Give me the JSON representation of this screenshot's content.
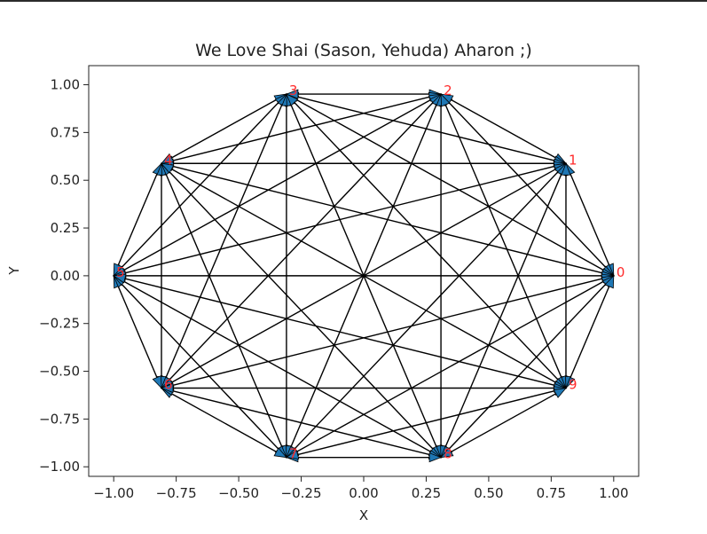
{
  "chart_data": {
    "type": "graph",
    "title": "We Love Shai (Sason, Yehuda) Aharon ;)",
    "xlabel": "X",
    "ylabel": "Y",
    "xlim": [
      -1.1,
      1.1
    ],
    "ylim": [
      -1.05,
      1.1
    ],
    "xticks": [
      -1.0,
      -0.75,
      -0.5,
      -0.25,
      0.0,
      0.25,
      0.5,
      0.75,
      1.0
    ],
    "xtick_labels": [
      "−1.00",
      "−0.75",
      "−0.50",
      "−0.25",
      "0.00",
      "0.25",
      "0.50",
      "0.75",
      "1.00"
    ],
    "yticks": [
      1.0,
      0.75,
      0.5,
      0.25,
      0.0,
      -0.25,
      -0.5,
      -0.75,
      -1.0
    ],
    "ytick_labels": [
      "1.00",
      "0.75",
      "0.50",
      "0.25",
      "0.00",
      "−0.25",
      "−0.50",
      "−0.75",
      "−1.00"
    ],
    "nodes": [
      {
        "id": "0",
        "x": 1.0,
        "y": 0.0
      },
      {
        "id": "1",
        "x": 0.809,
        "y": 0.588
      },
      {
        "id": "2",
        "x": 0.309,
        "y": 0.951
      },
      {
        "id": "3",
        "x": -0.309,
        "y": 0.951
      },
      {
        "id": "4",
        "x": -0.809,
        "y": 0.588
      },
      {
        "id": "5",
        "x": -1.0,
        "y": 0.0
      },
      {
        "id": "6",
        "x": -0.809,
        "y": -0.588
      },
      {
        "id": "7",
        "x": -0.309,
        "y": -0.951
      },
      {
        "id": "8",
        "x": 0.309,
        "y": -0.951
      },
      {
        "id": "9",
        "x": 0.809,
        "y": -0.588
      }
    ],
    "edges": "complete",
    "edge_color": "#000000",
    "arrow_color": "#1f77b4",
    "node_label_color": "#ff2a2a",
    "grid": false
  }
}
